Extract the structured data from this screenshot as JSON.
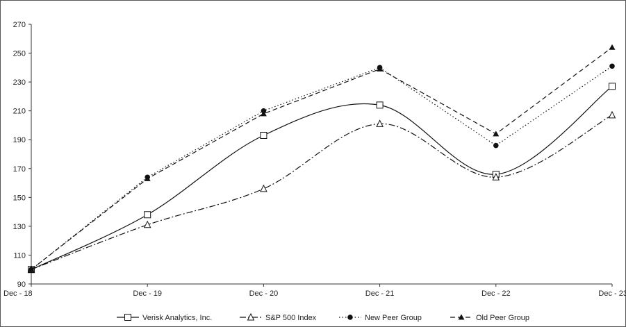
{
  "chart_data": {
    "type": "line",
    "title": "",
    "xlabel": "",
    "ylabel": "",
    "categories": [
      "Dec - 18",
      "Dec - 19",
      "Dec - 20",
      "Dec - 21",
      "Dec - 22",
      "Dec - 23"
    ],
    "ylim": [
      90,
      270
    ],
    "yticks": [
      90,
      110,
      130,
      150,
      170,
      190,
      210,
      230,
      250,
      270
    ],
    "grid": false,
    "legend_position": "bottom",
    "series": [
      {
        "name": "Verisk Analytics, Inc.",
        "values": [
          100,
          138,
          193,
          214,
          166,
          227
        ],
        "color": "#111111",
        "line_style": "solid",
        "smooth": true,
        "marker": "open-square"
      },
      {
        "name": "S&P 500 Index",
        "values": [
          100,
          131,
          156,
          201,
          164,
          207
        ],
        "color": "#111111",
        "line_style": "dash-dot",
        "smooth": true,
        "marker": "open-triangle"
      },
      {
        "name": "New Peer Group",
        "values": [
          100,
          164,
          210,
          240,
          186,
          241
        ],
        "color": "#111111",
        "line_style": "dotted",
        "smooth": false,
        "marker": "filled-circle"
      },
      {
        "name": "Old Peer Group",
        "values": [
          100,
          163,
          208,
          239,
          194,
          254
        ],
        "color": "#111111",
        "line_style": "dashed",
        "smooth": false,
        "marker": "filled-triangle"
      }
    ]
  }
}
